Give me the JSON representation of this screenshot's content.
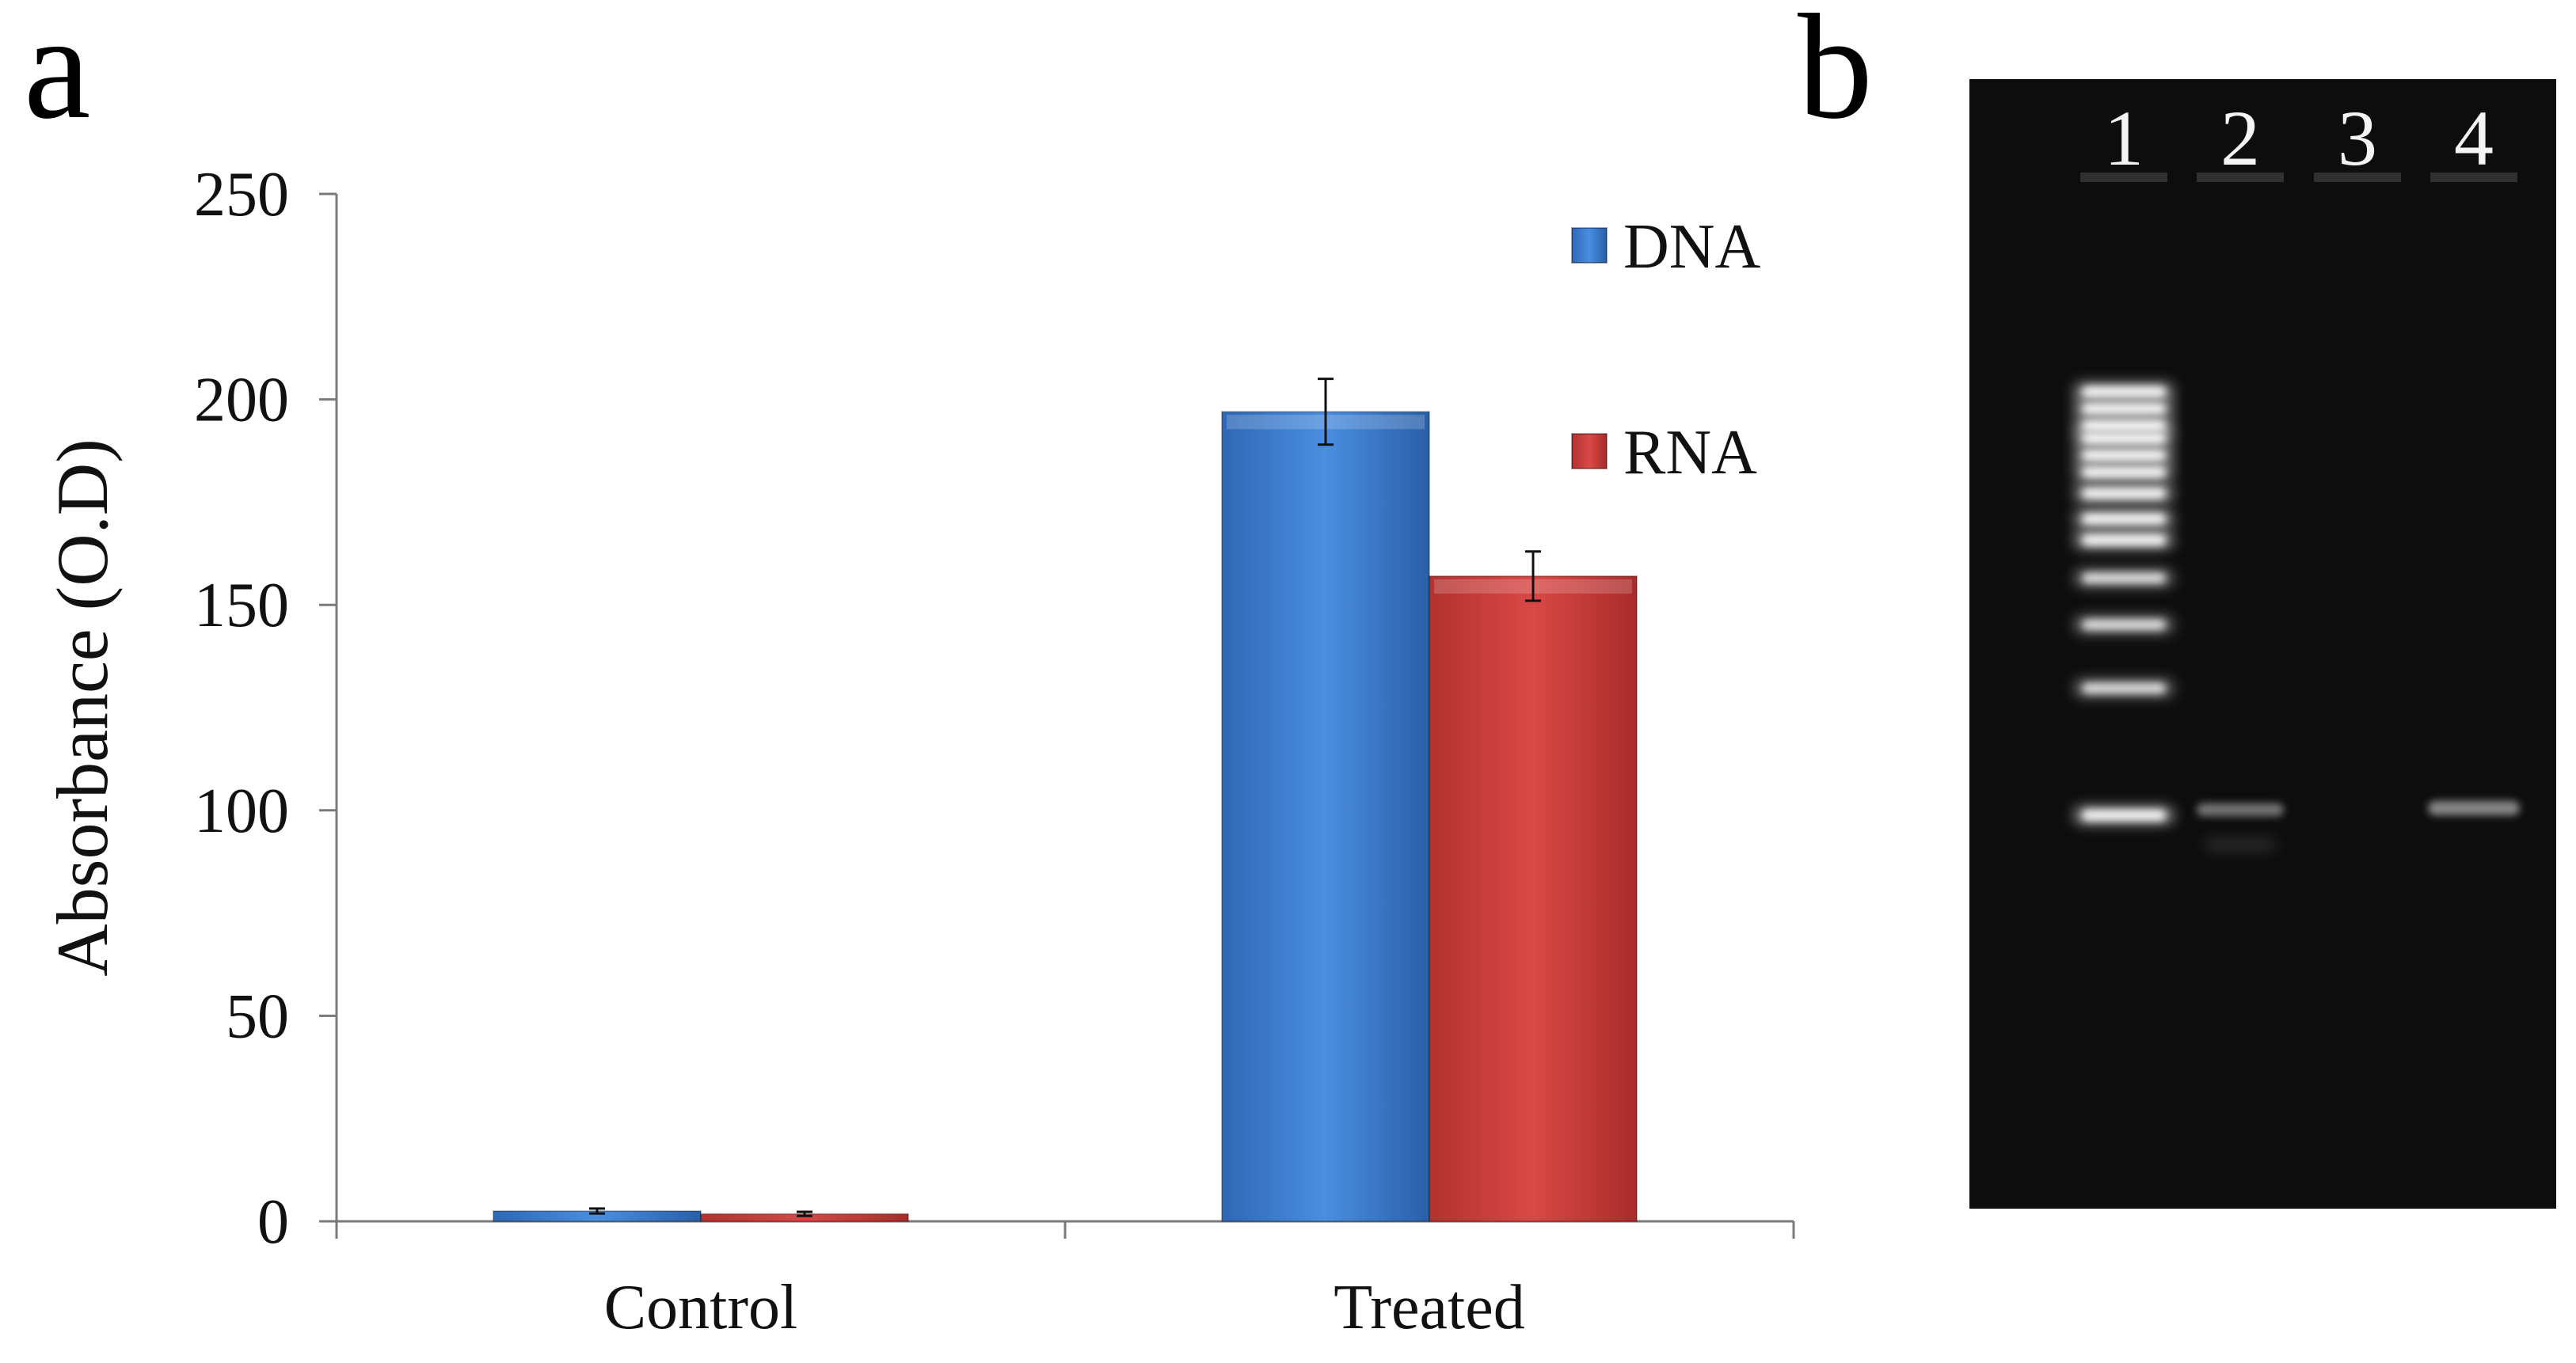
{
  "panels": {
    "a_label": "a",
    "b_label": "b"
  },
  "chart_data": {
    "type": "bar",
    "title": "",
    "xlabel": "",
    "ylabel": "Absorbance (O.D)",
    "ylim": [
      0,
      250
    ],
    "yticks": [
      0,
      50,
      100,
      150,
      200,
      250
    ],
    "categories": [
      "Control",
      "Treated"
    ],
    "series": [
      {
        "name": "DNA",
        "color": "#3a7cd1",
        "values": [
          2.5,
          197
        ],
        "errors": [
          0.6,
          8
        ]
      },
      {
        "name": "RNA",
        "color": "#c93a38",
        "values": [
          1.8,
          157
        ],
        "errors": [
          0.5,
          6
        ]
      }
    ],
    "legend_position": "top-right",
    "grid": false
  },
  "gel": {
    "lane_labels": [
      "1",
      "2",
      "3",
      "4"
    ],
    "ladder_relative_positions": [
      0.0,
      0.04,
      0.08,
      0.11,
      0.15,
      0.19,
      0.24,
      0.3,
      0.35,
      0.44,
      0.55,
      0.7,
      1.0
    ]
  }
}
